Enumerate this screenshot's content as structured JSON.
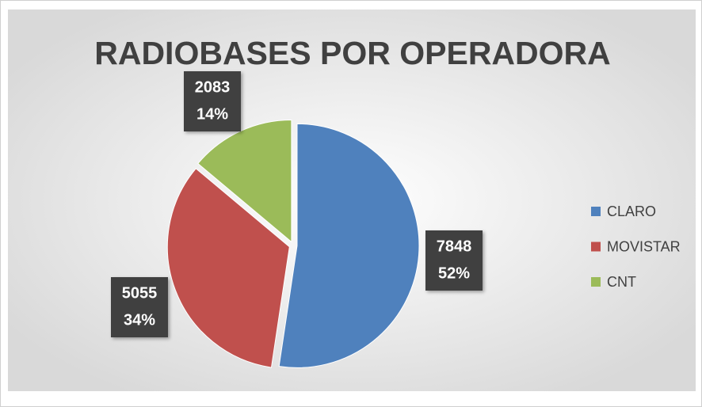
{
  "chart_data": {
    "type": "pie",
    "title": "RADIOBASES POR OPERADORA",
    "categories": [
      "CLARO",
      "MOVISTAR",
      "CNT"
    ],
    "values": [
      7848,
      5055,
      2083
    ],
    "percent_labels": [
      "52%",
      "34%",
      "14%"
    ],
    "colors": [
      "#4f81bd",
      "#c0504d",
      "#9bbb59"
    ],
    "legend": "right"
  }
}
